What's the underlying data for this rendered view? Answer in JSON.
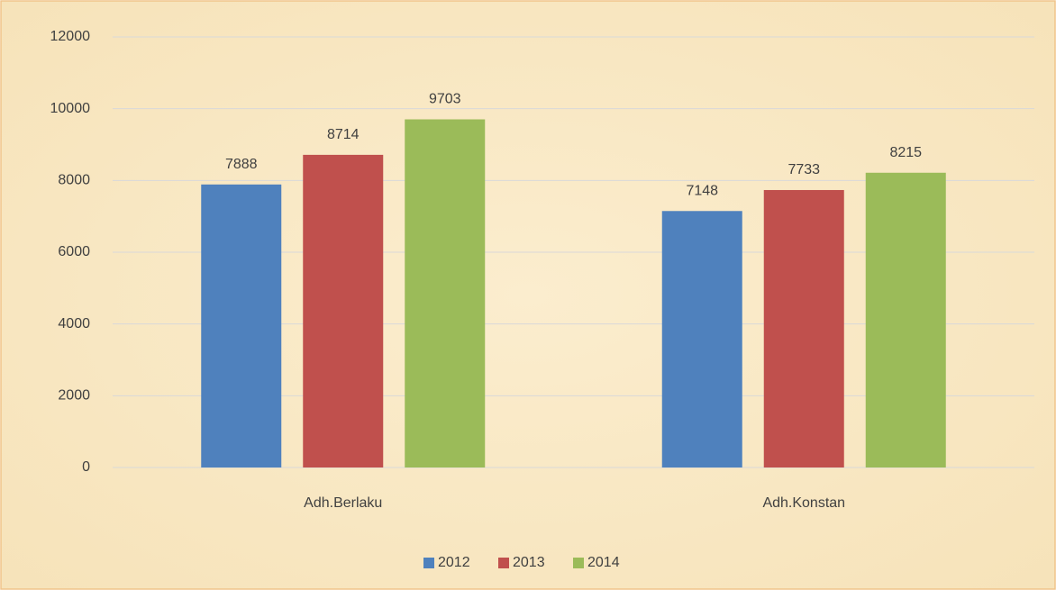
{
  "chart_data": {
    "type": "bar",
    "categories": [
      "Adh.Berlaku",
      "Adh.Konstan"
    ],
    "series": [
      {
        "name": "2012",
        "color": "#4f81bd",
        "values": [
          7888,
          7148
        ]
      },
      {
        "name": "2013",
        "color": "#c0504d",
        "values": [
          8714,
          7733
        ]
      },
      {
        "name": "2014",
        "color": "#9bbb59",
        "values": [
          9703,
          8215
        ]
      }
    ],
    "ylim": [
      0,
      12000
    ],
    "yticks": [
      0,
      2000,
      4000,
      6000,
      8000,
      10000,
      12000
    ],
    "grid": true,
    "legend": "bottom"
  }
}
